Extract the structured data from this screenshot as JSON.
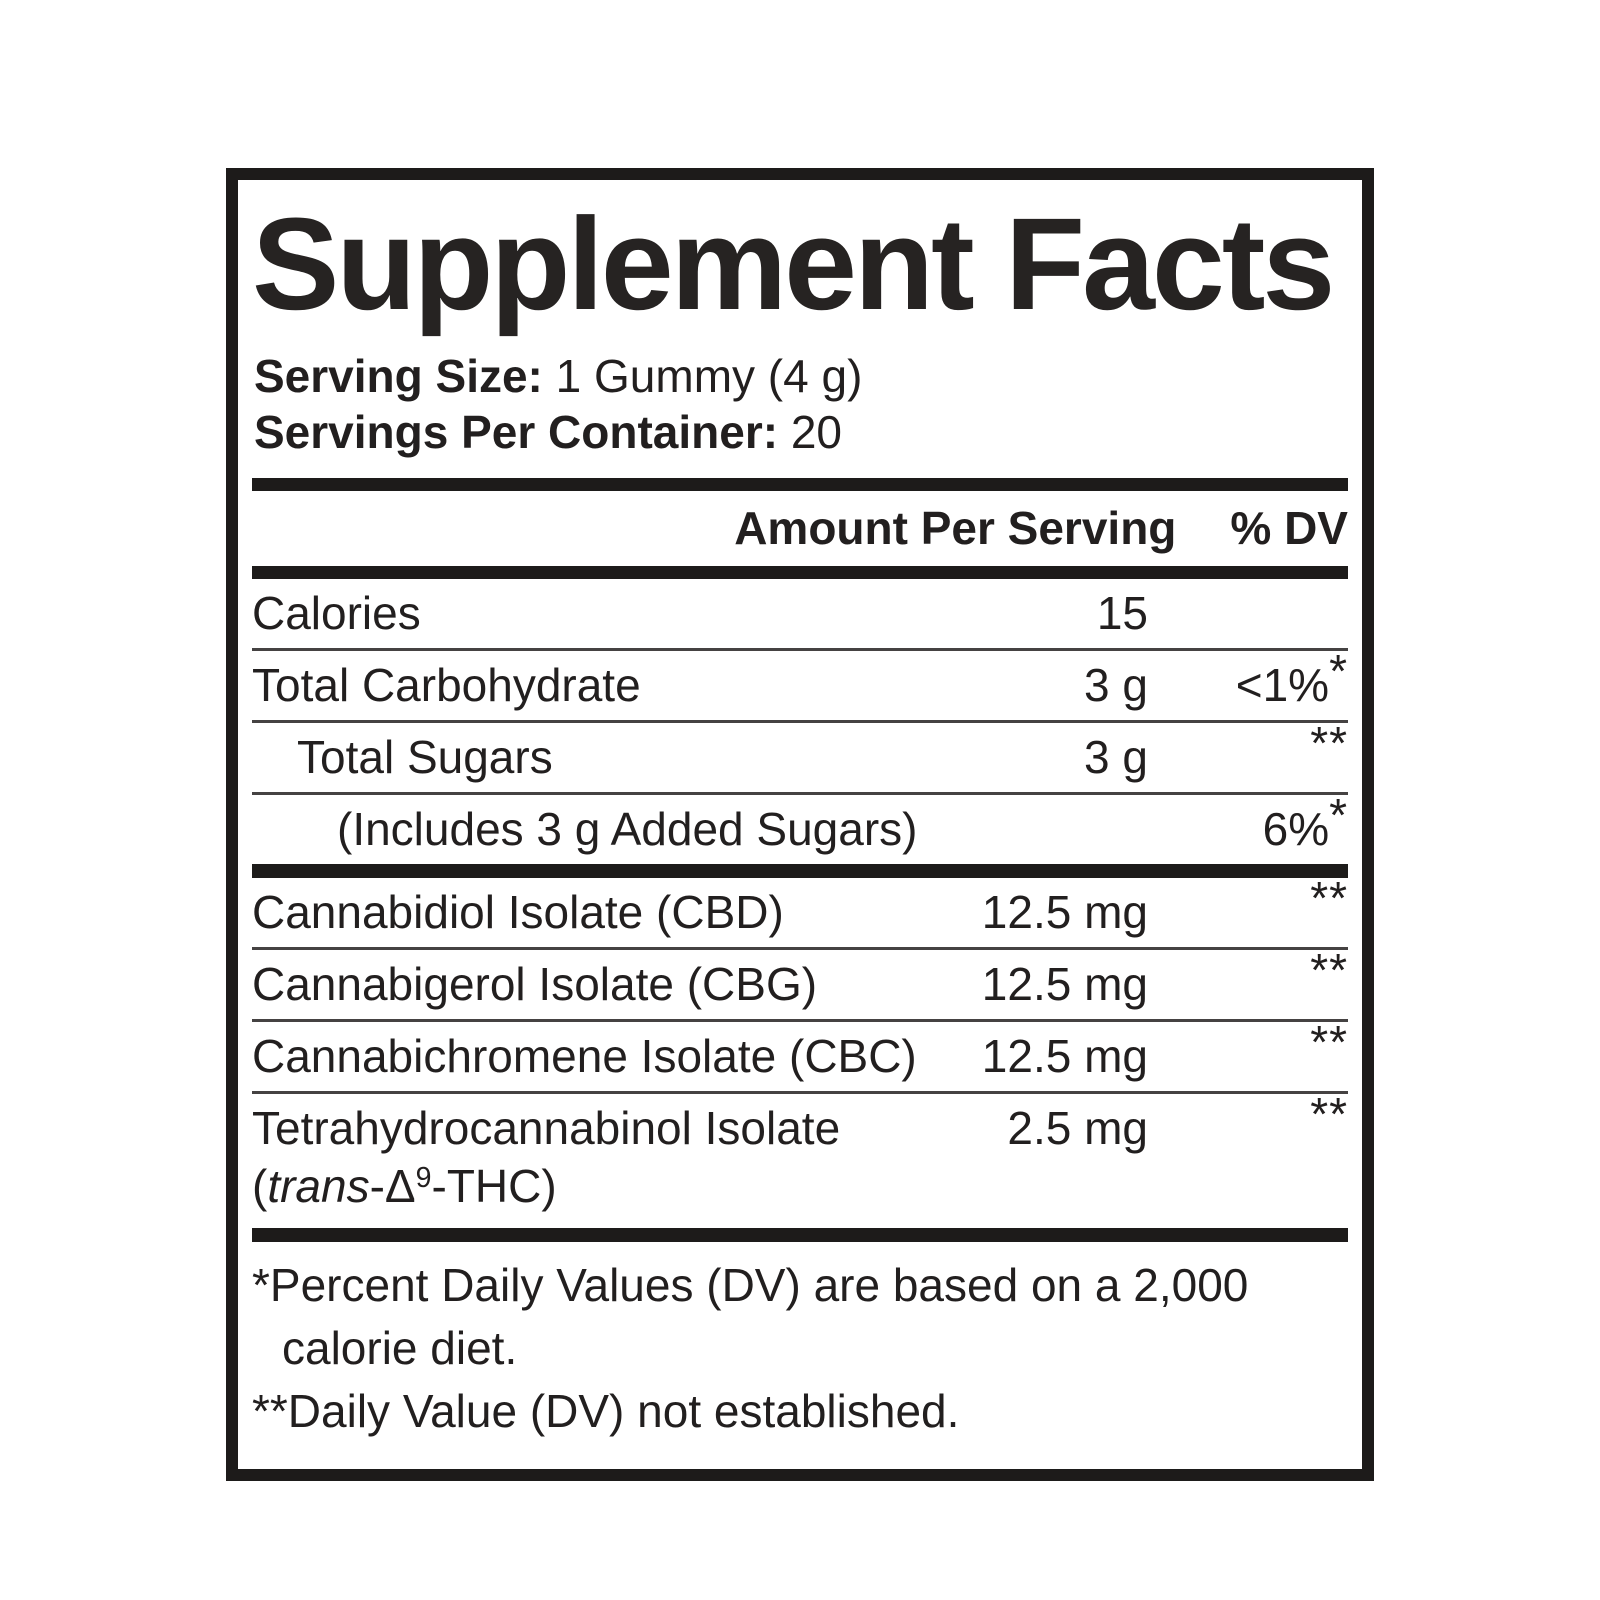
{
  "title": "Supplement Facts",
  "serving": {
    "size_label": "Serving Size:",
    "size_value": " 1 Gummy (4 g)",
    "count_label": "Servings Per Container:",
    "count_value": " 20"
  },
  "table": {
    "header": {
      "amount": "Amount Per Serving",
      "dv": "% DV"
    },
    "rows": [
      {
        "name": "Calories",
        "amount": "15",
        "dv_text": "",
        "dv_sup": ""
      },
      {
        "name": "Total Carbohydrate",
        "amount": "3 g",
        "dv_text": "<1%",
        "dv_sup": "*"
      },
      {
        "name": "Total Sugars",
        "amount": "3 g",
        "dv_text": "",
        "dv_sup": "**"
      },
      {
        "name": "(Includes 3 g Added Sugars)",
        "amount": "",
        "dv_text": "6%",
        "dv_sup": "*"
      },
      {
        "name": "Cannabidiol Isolate (CBD)",
        "amount": "12.5 mg",
        "dv_text": "",
        "dv_sup": "**"
      },
      {
        "name": "Cannabigerol Isolate (CBG)",
        "amount": "12.5 mg",
        "dv_text": "",
        "dv_sup": "**"
      },
      {
        "name": "Cannabichromene Isolate (CBC)",
        "amount": "12.5 mg",
        "dv_text": "",
        "dv_sup": "**"
      },
      {
        "name_line1": "Tetrahydrocannabinol Isolate",
        "name_l2_open": "(",
        "name_l2_italic": "trans",
        "name_l2_mid": "-Δ",
        "name_l2_sup": "9",
        "name_l2_close": "-THC)",
        "amount": "2.5 mg",
        "dv_text": "",
        "dv_sup": "**"
      }
    ]
  },
  "footnotes": [
    "*Percent Daily Values (DV) are based on a 2,000 calorie diet.",
    "**Daily Value (DV) not established."
  ]
}
